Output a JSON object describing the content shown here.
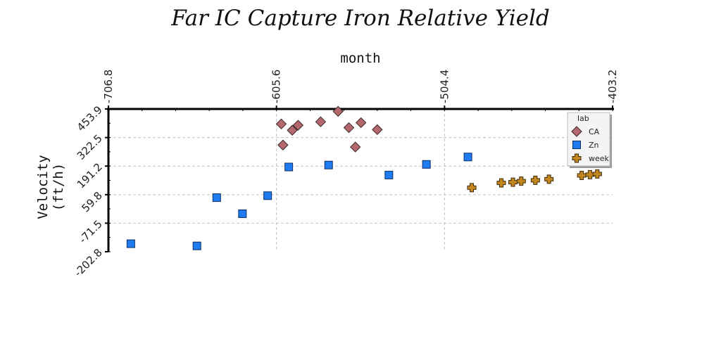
{
  "chart_data": {
    "type": "scatter",
    "title": "Far IC Capture Iron Relative Yield",
    "xlabel": "month",
    "ylabel": "Velocity (ft/h)",
    "xlim": [
      -706.8,
      -403.2
    ],
    "ylim": [
      -202.8,
      453.9
    ],
    "x_ticks": [
      "-706.8",
      "-605.6",
      "-504.4",
      "-403.2"
    ],
    "y_ticks": [
      "-202.8",
      "-71.5",
      "59.8",
      "191.2",
      "322.5",
      "453.9"
    ],
    "x_axis_position": "top",
    "grid": true,
    "legend": {
      "title": "lab",
      "position": "top-right"
    },
    "series": [
      {
        "name": "CA",
        "marker": "diamond",
        "color": "#b5676e",
        "points": [
          [
            -602.7,
            385
          ],
          [
            -601.7,
            288
          ],
          [
            -596.1,
            356
          ],
          [
            -592.6,
            379
          ],
          [
            -579.0,
            395
          ],
          [
            -568.5,
            443
          ],
          [
            -562.0,
            368
          ],
          [
            -558.1,
            279
          ],
          [
            -554.7,
            391
          ],
          [
            -544.9,
            359
          ]
        ]
      },
      {
        "name": "Zn",
        "marker": "square",
        "color": "#1e7cf0",
        "points": [
          [
            -693.3,
            -166
          ],
          [
            -653.5,
            -176
          ],
          [
            -641.6,
            46
          ],
          [
            -626.1,
            -28
          ],
          [
            -610.9,
            55
          ],
          [
            -598.2,
            187
          ],
          [
            -574.2,
            196
          ],
          [
            -537.9,
            150
          ],
          [
            -515.3,
            199
          ],
          [
            -490.3,
            233
          ]
        ]
      },
      {
        "name": "week",
        "marker": "plus",
        "color": "#c4861e",
        "points": [
          [
            -488.0,
            92
          ],
          [
            -470.2,
            114
          ],
          [
            -463.2,
            117
          ],
          [
            -458.2,
            122
          ],
          [
            -449.7,
            126
          ],
          [
            -441.5,
            131
          ],
          [
            -421.8,
            148
          ],
          [
            -416.8,
            152
          ],
          [
            -412.4,
            155
          ]
        ]
      }
    ]
  }
}
